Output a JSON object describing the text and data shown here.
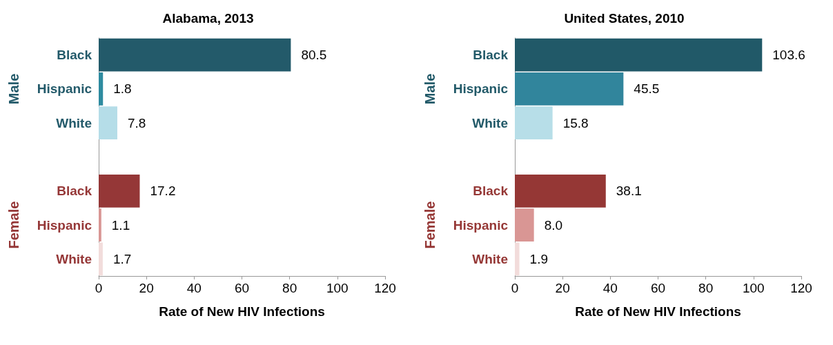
{
  "chart_data": [
    {
      "type": "bar",
      "title": "Alabama, 2013",
      "orientation": "horizontal",
      "categories": [
        "Black",
        "Hispanic",
        "White",
        null,
        "Black",
        "Hispanic",
        "White"
      ],
      "values": [
        80.5,
        1.8,
        7.8,
        null,
        17.2,
        1.1,
        1.7
      ],
      "value_labels": [
        "80.5",
        "1.8",
        "7.8",
        null,
        "17.2",
        "1.1",
        "1.7"
      ],
      "colors": [
        "#235a6a",
        "#2e8ba0",
        "#b5dde8",
        "#ffffff",
        "#953737",
        "#d99694",
        "#f2dcdb"
      ],
      "xlim": [
        0,
        120
      ],
      "xticks": [
        0,
        20,
        40,
        60,
        80,
        100,
        120
      ],
      "xlabel": "Rate of New HIV Infections",
      "grid": false,
      "annotations": [
        "Male",
        "Female"
      ]
    },
    {
      "type": "bar",
      "title": "United States, 2010",
      "orientation": "horizontal",
      "categories": [
        "Black",
        "Hispanic",
        "White",
        null,
        "Black",
        "Hispanic",
        "White"
      ],
      "values": [
        103.6,
        45.5,
        15.8,
        null,
        38.1,
        8.0,
        1.9
      ],
      "value_labels": [
        "103.6",
        "45.5",
        "15.8",
        null,
        "38.1",
        "8.0",
        "1.9"
      ],
      "colors": [
        "#215968",
        "#31859c",
        "#b7dee8",
        "#ffffff",
        "#953735",
        "#d99694",
        "#f2dcdb"
      ],
      "xlim": [
        0,
        120
      ],
      "xticks": [
        0,
        20,
        40,
        60,
        80,
        100,
        120
      ],
      "xlabel": "Rate of New HIV Infections",
      "grid": false,
      "annotations": [
        "Male",
        "Female"
      ]
    }
  ]
}
